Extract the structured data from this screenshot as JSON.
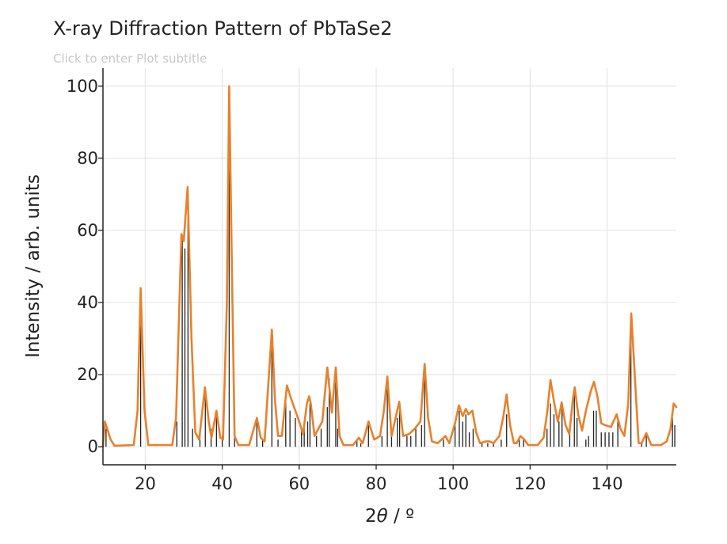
{
  "chart_data": {
    "type": "line",
    "title": "X-ray Diffraction Pattern of PbTaSe2",
    "subtitle_placeholder": "Click to enter Plot subtitle",
    "xlabel_main": "2",
    "xlabel_theta": "θ",
    "xlabel_unit": " / º",
    "ylabel": "Intensity / arb. units",
    "xlim": [
      9,
      158
    ],
    "ylim": [
      -5,
      105
    ],
    "x_ticks": [
      20,
      40,
      60,
      80,
      100,
      120,
      140
    ],
    "y_ticks": [
      0,
      20,
      40,
      60,
      80,
      100
    ],
    "grid": true,
    "series": [
      {
        "type": "line",
        "color": "#E8812C",
        "points": [
          [
            9,
            0
          ],
          [
            9.5,
            7
          ],
          [
            11,
            2
          ],
          [
            12,
            0.3
          ],
          [
            17,
            0.5
          ],
          [
            18,
            10
          ],
          [
            18.8,
            44
          ],
          [
            19.8,
            10
          ],
          [
            20.8,
            0.5
          ],
          [
            27,
            0.5
          ],
          [
            28,
            8
          ],
          [
            29.4,
            59
          ],
          [
            30,
            57
          ],
          [
            31,
            72
          ],
          [
            32,
            30
          ],
          [
            33,
            4
          ],
          [
            34,
            2
          ],
          [
            35.5,
            16.5
          ],
          [
            36.5,
            7
          ],
          [
            37.2,
            2.5
          ],
          [
            38.5,
            10
          ],
          [
            39.5,
            2.5
          ],
          [
            40.2,
            2
          ],
          [
            41.2,
            40
          ],
          [
            41.8,
            100
          ],
          [
            42.5,
            50
          ],
          [
            43.2,
            3
          ],
          [
            44.2,
            0.5
          ],
          [
            47,
            0.5
          ],
          [
            49,
            8
          ],
          [
            50,
            2.5
          ],
          [
            51,
            1.5
          ],
          [
            52.5,
            26
          ],
          [
            52.9,
            32.5
          ],
          [
            53.7,
            13
          ],
          [
            54.5,
            3
          ],
          [
            55.5,
            3
          ],
          [
            56.8,
            17
          ],
          [
            58,
            13
          ],
          [
            60,
            7
          ],
          [
            61,
            3.5
          ],
          [
            62,
            12
          ],
          [
            62.6,
            14
          ],
          [
            63,
            12
          ],
          [
            64,
            3
          ],
          [
            66,
            7
          ],
          [
            67.3,
            22
          ],
          [
            68.5,
            9.5
          ],
          [
            69.5,
            22
          ],
          [
            70.5,
            3
          ],
          [
            71.5,
            0.5
          ],
          [
            74,
            0.5
          ],
          [
            75.5,
            2.5
          ],
          [
            76.5,
            1
          ],
          [
            78,
            7
          ],
          [
            79.5,
            2
          ],
          [
            81,
            3
          ],
          [
            82,
            10
          ],
          [
            82.9,
            19.5
          ],
          [
            84,
            3
          ],
          [
            86,
            12.5
          ],
          [
            87,
            3
          ],
          [
            88.5,
            3.5
          ],
          [
            90,
            5
          ],
          [
            91.5,
            7
          ],
          [
            92.6,
            23
          ],
          [
            93.5,
            8
          ],
          [
            94.5,
            1.5
          ],
          [
            96,
            1
          ],
          [
            98,
            3
          ],
          [
            99,
            1
          ],
          [
            100.5,
            6.5
          ],
          [
            101.5,
            11.5
          ],
          [
            102.5,
            8.5
          ],
          [
            103.3,
            10.5
          ],
          [
            104,
            9
          ],
          [
            105,
            10
          ],
          [
            106,
            4
          ],
          [
            107,
            1
          ],
          [
            108.5,
            1.5
          ],
          [
            109.5,
            1.5
          ],
          [
            110.5,
            1
          ],
          [
            112,
            3
          ],
          [
            113,
            8
          ],
          [
            113.9,
            14.5
          ],
          [
            114.8,
            6
          ],
          [
            115.8,
            1
          ],
          [
            116.5,
            1
          ],
          [
            117.5,
            3
          ],
          [
            118.5,
            2
          ],
          [
            119.5,
            0.5
          ],
          [
            122,
            0.5
          ],
          [
            123.5,
            2.5
          ],
          [
            124.5,
            10
          ],
          [
            125.3,
            18.5
          ],
          [
            126.3,
            12
          ],
          [
            127.2,
            7
          ],
          [
            127.8,
            10
          ],
          [
            128.2,
            12.3
          ],
          [
            129.2,
            6
          ],
          [
            130.2,
            3.5
          ],
          [
            131.1,
            13
          ],
          [
            131.6,
            16.5
          ],
          [
            132.5,
            9
          ],
          [
            133.5,
            4.5
          ],
          [
            134.5,
            10
          ],
          [
            135.8,
            15.5
          ],
          [
            136.6,
            18
          ],
          [
            137.5,
            14
          ],
          [
            138.5,
            6.5
          ],
          [
            139.5,
            6
          ],
          [
            141,
            5.5
          ],
          [
            142.5,
            9
          ],
          [
            143.5,
            5
          ],
          [
            144.5,
            3
          ],
          [
            145.5,
            12
          ],
          [
            146.3,
            37
          ],
          [
            147.2,
            20
          ],
          [
            148.2,
            1
          ],
          [
            149,
            1
          ],
          [
            150.2,
            3.8
          ],
          [
            151.5,
            0.5
          ],
          [
            154,
            0.5
          ],
          [
            155.5,
            1.5
          ],
          [
            156.5,
            5
          ],
          [
            157.3,
            12
          ],
          [
            158,
            11
          ]
        ]
      },
      {
        "type": "stick",
        "color": "#222222",
        "points": [
          [
            9.8,
            5
          ],
          [
            18.8,
            40
          ],
          [
            28.2,
            7
          ],
          [
            29.6,
            58
          ],
          [
            30.3,
            55
          ],
          [
            31.1,
            70
          ],
          [
            32.3,
            5
          ],
          [
            34.2,
            3
          ],
          [
            35.6,
            15
          ],
          [
            37.1,
            5
          ],
          [
            38.5,
            10
          ],
          [
            40,
            3
          ],
          [
            41.8,
            90
          ],
          [
            43.2,
            4
          ],
          [
            49,
            7
          ],
          [
            50.5,
            2
          ],
          [
            52.9,
            30
          ],
          [
            54.5,
            2
          ],
          [
            56.5,
            15
          ],
          [
            57.6,
            10
          ],
          [
            59,
            8
          ],
          [
            60.6,
            5
          ],
          [
            61.3,
            5
          ],
          [
            62.2,
            7
          ],
          [
            62.8,
            12
          ],
          [
            64.5,
            3
          ],
          [
            65.7,
            5
          ],
          [
            67.3,
            11
          ],
          [
            67.8,
            19
          ],
          [
            69.5,
            20
          ],
          [
            70,
            5
          ],
          [
            75,
            2
          ],
          [
            76,
            1
          ],
          [
            78,
            6
          ],
          [
            81.5,
            3
          ],
          [
            82.9,
            18
          ],
          [
            84,
            3
          ],
          [
            85.5,
            8
          ],
          [
            86.1,
            10
          ],
          [
            88,
            3
          ],
          [
            89,
            3
          ],
          [
            90.3,
            5
          ],
          [
            91.8,
            6
          ],
          [
            92.6,
            21
          ],
          [
            97.5,
            2
          ],
          [
            100.5,
            6
          ],
          [
            101.6,
            10
          ],
          [
            102.5,
            7
          ],
          [
            103.3,
            9
          ],
          [
            104.2,
            4
          ],
          [
            105.2,
            5
          ],
          [
            107.5,
            1
          ],
          [
            109,
            1
          ],
          [
            110.5,
            1
          ],
          [
            112.5,
            2
          ],
          [
            113.9,
            9
          ],
          [
            117.2,
            2
          ],
          [
            118.3,
            2
          ],
          [
            124.4,
            5
          ],
          [
            125.3,
            12
          ],
          [
            126.2,
            9
          ],
          [
            127.5,
            7
          ],
          [
            128.3,
            11
          ],
          [
            130.3,
            4
          ],
          [
            131.5,
            15
          ],
          [
            132.2,
            8
          ],
          [
            134.5,
            2
          ],
          [
            135.2,
            3
          ],
          [
            136.5,
            10
          ],
          [
            137.2,
            10
          ],
          [
            138.5,
            4
          ],
          [
            139.5,
            4
          ],
          [
            140.5,
            4
          ],
          [
            141.5,
            4
          ],
          [
            142.8,
            8
          ],
          [
            146.2,
            33
          ],
          [
            149,
            1
          ],
          [
            150.2,
            3
          ],
          [
            157,
            8
          ],
          [
            157.6,
            6
          ]
        ]
      }
    ]
  }
}
